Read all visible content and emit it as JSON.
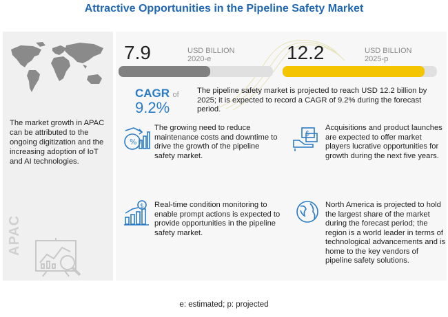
{
  "title": "Attractive Opportunities in the Pipeline Safety Market",
  "left": {
    "text": "The market growth in APAC can be attributed to the ongoing digitization and the increasing adoption of IoT and AI technologies.",
    "region_label": "APAC"
  },
  "stat_2020": {
    "value": "7.9",
    "unit": "USD BILLION",
    "year": "2020-e"
  },
  "stat_2025": {
    "value": "12.2",
    "unit": "USD BILLION",
    "year": "2025-p"
  },
  "cagr": {
    "label": "CAGR",
    "of": "of",
    "value": "9.2%",
    "text": "The pipeline safety market is projected to reach USD 12.2 billion by 2025; it is expected to record a CAGR of 9.2% during the forecast period."
  },
  "points": [
    {
      "icon": "cost-reduction-icon",
      "text": "The growing need to reduce maintenance costs and downtime to drive the growth of the pipeline safety market."
    },
    {
      "icon": "acquisition-icon",
      "text": "Acquisitions and product launches are expected to offer market players lucrative opportunities for growth during the next five years."
    },
    {
      "icon": "monitoring-icon",
      "text": "Real-time condition monitoring to enable prompt actions is expected to provide opportunities in the pipeline safety market."
    },
    {
      "icon": "globe-icon",
      "text": "North America is projected to hold the largest share of the market during the forecast period; the region is a world leader in terms of technological advancements and is home to the key vendors of pipeline safety solutions."
    }
  ],
  "footer": "e: estimated; p: projected",
  "colors": {
    "title": "#1f67b1",
    "accent": "#2a7bc6",
    "bar_2020": "#808080",
    "bar_2025": "#f5c400"
  }
}
